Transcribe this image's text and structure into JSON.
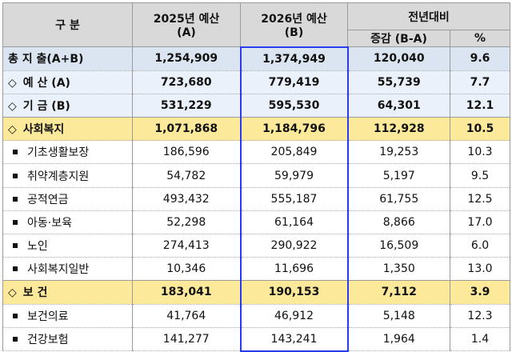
{
  "header": {
    "category": "구 분",
    "col_2025": "2025년 예산",
    "col_2025_sub": "(A)",
    "col_2026": "2026년 예산",
    "col_2026_sub": "(B)",
    "yoy": "전년대비",
    "diff": "증감 (B-A)",
    "pct": "%"
  },
  "rows": [
    {
      "type": "total",
      "marker": "",
      "label": "총 지 출(A+B)",
      "a": "1,254,909",
      "b": "1,374,949",
      "diff": "120,040",
      "pct": "9.6"
    },
    {
      "type": "sub",
      "marker": "◇",
      "label": "예 산 (A)",
      "a": "723,680",
      "b": "779,419",
      "diff": "55,739",
      "pct": "7.7"
    },
    {
      "type": "sub",
      "marker": "◇",
      "label": "기 금 (B)",
      "a": "531,229",
      "b": "595,530",
      "diff": "64,301",
      "pct": "12.1"
    },
    {
      "type": "cat",
      "marker": "◇",
      "label": "사회복지",
      "a": "1,071,868",
      "b": "1,184,796",
      "diff": "112,928",
      "pct": "10.5"
    },
    {
      "type": "item",
      "marker": "■",
      "label": "기초생활보장",
      "a": "186,596",
      "b": "205,849",
      "diff": "19,253",
      "pct": "10.3"
    },
    {
      "type": "item",
      "marker": "■",
      "label": "취약계층지원",
      "a": "54,782",
      "b": "59,979",
      "diff": "5,197",
      "pct": "9.5"
    },
    {
      "type": "item",
      "marker": "■",
      "label": "공적연금",
      "a": "493,432",
      "b": "555,187",
      "diff": "61,755",
      "pct": "12.5"
    },
    {
      "type": "item",
      "marker": "■",
      "label": "아동·보육",
      "a": "52,298",
      "b": "61,164",
      "diff": "8,866",
      "pct": "17.0"
    },
    {
      "type": "item",
      "marker": "■",
      "label": "노인",
      "a": "274,413",
      "b": "290,922",
      "diff": "16,509",
      "pct": "6.0"
    },
    {
      "type": "item",
      "marker": "■",
      "label": "사회복지일반",
      "a": "10,346",
      "b": "11,696",
      "diff": "1,350",
      "pct": "13.0"
    },
    {
      "type": "cat",
      "marker": "◇",
      "label": "보 건",
      "a": "183,041",
      "b": "190,153",
      "diff": "7,112",
      "pct": "3.9"
    },
    {
      "type": "item",
      "marker": "■",
      "label": "보건의료",
      "a": "41,764",
      "b": "46,912",
      "diff": "5,148",
      "pct": "12.3"
    },
    {
      "type": "item",
      "marker": "■",
      "label": "건강보험",
      "a": "141,277",
      "b": "143,241",
      "diff": "1,964",
      "pct": "1.4"
    }
  ],
  "colors": {
    "header_bg": "#d9d9d9",
    "total_bg": "#dbe5f1",
    "sub_bg": "#ebf1fa",
    "category_bg": "#fde99a",
    "highlight_border": "#2b3bf0"
  }
}
